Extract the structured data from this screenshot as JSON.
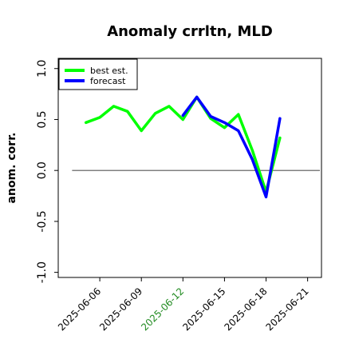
{
  "chart_data": {
    "type": "line",
    "title": "Anomaly crrltn, MLD",
    "ylabel": "anom. corr.",
    "xlabel": "",
    "ylim": [
      -1.05,
      1.1
    ],
    "xlim": [
      "2025-06-03",
      "2025-06-22"
    ],
    "yticks": [
      {
        "value": -1.0,
        "label": "-1.0"
      },
      {
        "value": -0.5,
        "label": "-0.5"
      },
      {
        "value": 0.0,
        "label": "0.0"
      },
      {
        "value": 0.5,
        "label": "0.5"
      },
      {
        "value": 1.0,
        "label": "1.0"
      }
    ],
    "xticks": [
      {
        "date": "2025-06-06",
        "label": "2025-06-06",
        "color": "#000000"
      },
      {
        "date": "2025-06-09",
        "label": "2025-06-09",
        "color": "#000000"
      },
      {
        "date": "2025-06-12",
        "label": "2025-06-12",
        "color": "#228b22"
      },
      {
        "date": "2025-06-15",
        "label": "2025-06-15",
        "color": "#000000"
      },
      {
        "date": "2025-06-18",
        "label": "2025-06-18",
        "color": "#000000"
      },
      {
        "date": "2025-06-21",
        "label": "2025-06-21",
        "color": "#000000"
      }
    ],
    "zero_line": 0.0,
    "legend_placement": "top-left",
    "series": [
      {
        "name": "best est.",
        "color": "#00ff00",
        "points": [
          {
            "x": "2025-06-05",
            "y": 0.47
          },
          {
            "x": "2025-06-06",
            "y": 0.52
          },
          {
            "x": "2025-06-07",
            "y": 0.63
          },
          {
            "x": "2025-06-08",
            "y": 0.58
          },
          {
            "x": "2025-06-09",
            "y": 0.39
          },
          {
            "x": "2025-06-10",
            "y": 0.56
          },
          {
            "x": "2025-06-11",
            "y": 0.63
          },
          {
            "x": "2025-06-12",
            "y": 0.5
          },
          {
            "x": "2025-06-13",
            "y": 0.72
          },
          {
            "x": "2025-06-14",
            "y": 0.51
          },
          {
            "x": "2025-06-15",
            "y": 0.42
          },
          {
            "x": "2025-06-16",
            "y": 0.55
          },
          {
            "x": "2025-06-17",
            "y": 0.2
          },
          {
            "x": "2025-06-18",
            "y": -0.21
          },
          {
            "x": "2025-06-19",
            "y": 0.32
          }
        ]
      },
      {
        "name": "forecast",
        "color": "#0000ff",
        "points": [
          {
            "x": "2025-06-12",
            "y": 0.54
          },
          {
            "x": "2025-06-13",
            "y": 0.72
          },
          {
            "x": "2025-06-14",
            "y": 0.53
          },
          {
            "x": "2025-06-15",
            "y": 0.47
          },
          {
            "x": "2025-06-16",
            "y": 0.39
          },
          {
            "x": "2025-06-17",
            "y": 0.11
          },
          {
            "x": "2025-06-18",
            "y": -0.26
          },
          {
            "x": "2025-06-19",
            "y": 0.51
          }
        ]
      }
    ]
  }
}
